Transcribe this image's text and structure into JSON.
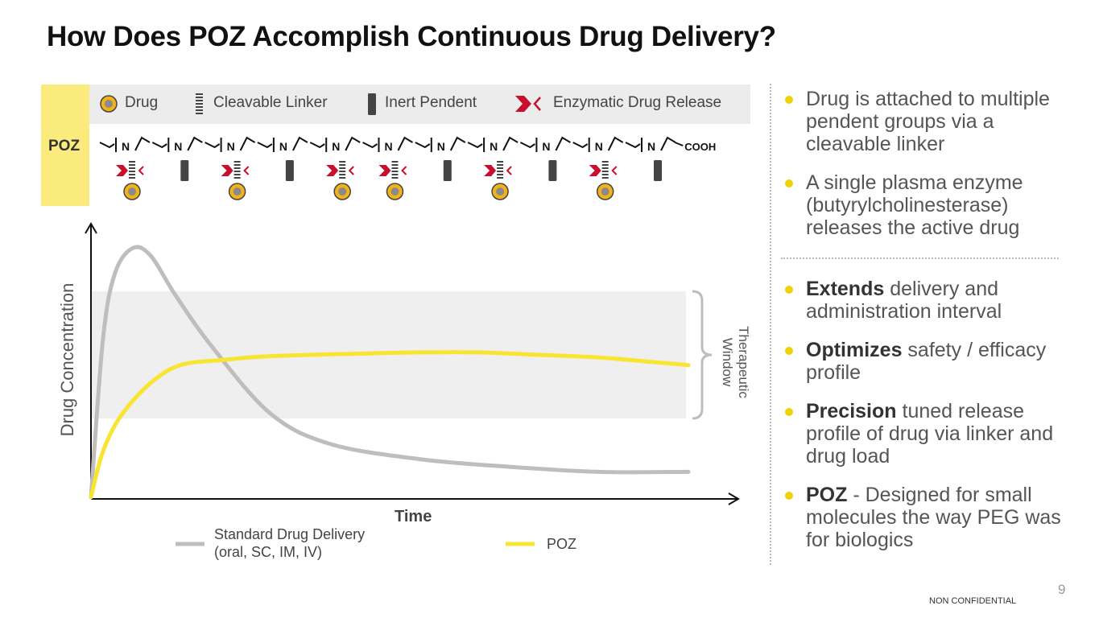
{
  "title": "How Does POZ Accomplish Continuous Drug Delivery?",
  "diagram": {
    "poz_label": "POZ",
    "legend": {
      "drug": "Drug",
      "cleavable_linker": "Cleavable Linker",
      "inert_pendent": "Inert Pendent",
      "enzymatic_release": "Enzymatic Drug Release"
    },
    "chain_atom": "N",
    "chain_end": "COOH",
    "pendent_sequence": [
      "drug",
      "inert",
      "drug",
      "inert",
      "drug",
      "drug",
      "inert",
      "drug",
      "inert",
      "drug",
      "inert"
    ],
    "colors": {
      "drug_fill": "#f2b21a",
      "linker": "#555555",
      "release_red": "#c8102e",
      "poz_yellow": "#fbeb7d"
    }
  },
  "chart": {
    "ylabel": "Drug Concentration",
    "xlabel": "Time",
    "therapeutic_window_label": [
      "Therapeutic",
      "Window"
    ],
    "legend": {
      "standard_line1": "Standard Drug Delivery",
      "standard_line2": "(oral, SC, IM, IV)",
      "poz": "POZ"
    }
  },
  "chart_data": {
    "type": "line",
    "xlabel": "Time",
    "ylabel": "Drug Concentration",
    "series": [
      {
        "name": "Standard Drug Delivery (oral, SC, IM, IV)",
        "color": "#c2bdbd",
        "x": [
          0,
          0.02,
          0.04,
          0.07,
          0.1,
          0.14,
          0.2,
          0.3,
          0.4,
          0.55,
          0.7,
          0.85,
          1.0
        ],
        "y": [
          0,
          0.62,
          0.88,
          0.98,
          0.95,
          0.8,
          0.6,
          0.33,
          0.21,
          0.15,
          0.12,
          0.1,
          0.1
        ]
      },
      {
        "name": "POZ",
        "color": "#f8e532",
        "x": [
          0,
          0.02,
          0.05,
          0.1,
          0.15,
          0.22,
          0.3,
          0.45,
          0.55,
          0.65,
          0.75,
          0.85,
          0.95,
          1.0
        ],
        "y": [
          0,
          0.18,
          0.32,
          0.45,
          0.52,
          0.54,
          0.555,
          0.565,
          0.57,
          0.57,
          0.56,
          0.55,
          0.53,
          0.52
        ]
      }
    ],
    "therapeutic_window": [
      0.31,
      0.81
    ],
    "ylim": [
      0,
      1
    ],
    "xlim": [
      0,
      1
    ]
  },
  "bullets_top": [
    {
      "bold": "",
      "text": "Drug is attached to multiple pendent groups via a cleavable linker"
    },
    {
      "bold": "",
      "text": "A single plasma enzyme (butyrylcholinesterase) releases the active drug"
    }
  ],
  "bullets_bottom": [
    {
      "bold": "Extends",
      "text": " delivery and administration interval"
    },
    {
      "bold": "Optimizes",
      "text": " safety / efficacy profile"
    },
    {
      "bold": "Precision",
      "text": " tuned release profile of drug via linker and drug load"
    },
    {
      "bold": "POZ",
      "text": " - Designed for small molecules the way PEG was for biologics"
    }
  ],
  "footer": {
    "page_number": "9",
    "confidentiality": "NON CONFIDENTIAL"
  }
}
